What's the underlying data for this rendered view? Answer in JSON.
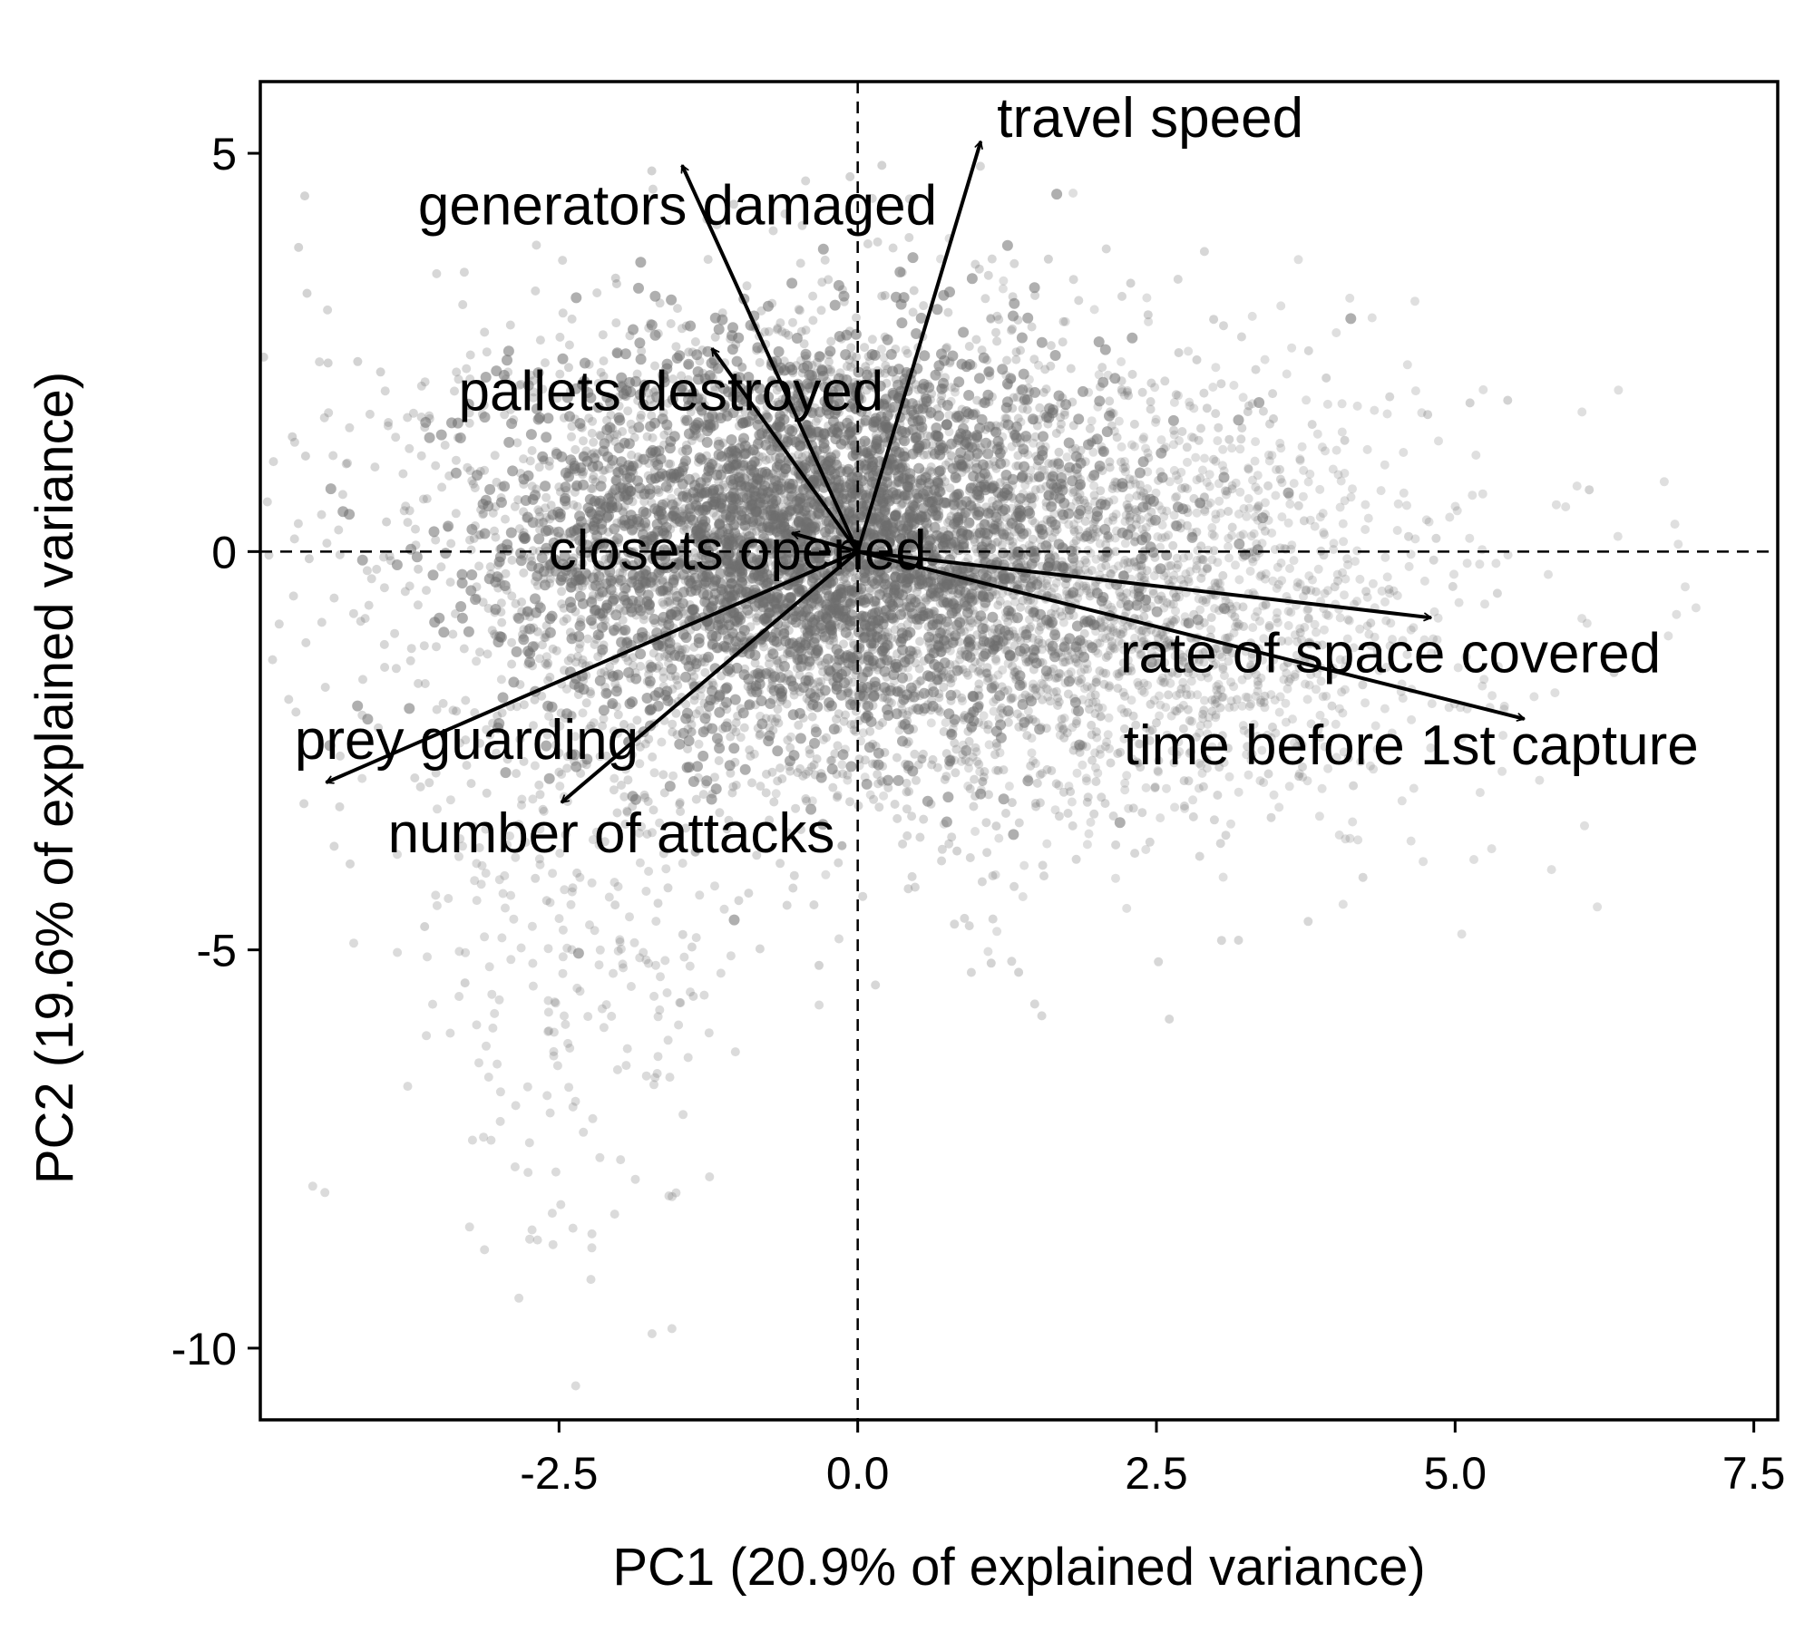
{
  "chart_data": {
    "type": "scatter",
    "subtype": "pca-biplot",
    "title": "",
    "xlabel": "PC1 (20.9% of explained variance)",
    "ylabel": "PC2 (19.6% of explained variance)",
    "xlim": [
      -5.0,
      7.7
    ],
    "ylim": [
      -10.9,
      5.9
    ],
    "xticks": [
      -2.5,
      0.0,
      2.5,
      5.0,
      7.5
    ],
    "xtick_labels": [
      "-2.5",
      "0.0",
      "2.5",
      "5.0",
      "7.5"
    ],
    "yticks": [
      -10,
      -5,
      0,
      5
    ],
    "ytick_labels": [
      "-10",
      "-5",
      "0",
      "5"
    ],
    "grid": false,
    "reference_lines": {
      "x": 0,
      "y": 0,
      "style": "dashed"
    },
    "point_color": "#6e6e6e",
    "arrow_color": "#000000",
    "points_note_value": "dense cloud of semi-transparent grey observations centred near the origin",
    "loadings": [
      {
        "label": "travel speed",
        "x": 1.03,
        "y": 5.15
      },
      {
        "label": "generators damaged",
        "x": -1.47,
        "y": 4.85
      },
      {
        "label": "pallets destroyed",
        "x": -1.22,
        "y": 2.55
      },
      {
        "label": "closets opened",
        "x": -0.55,
        "y": 0.23
      },
      {
        "label": "rate of space covered",
        "x": 4.8,
        "y": -0.83
      },
      {
        "label": "time before 1st capture",
        "x": 5.58,
        "y": -2.1
      },
      {
        "label": "prey guarding",
        "x": -4.45,
        "y": -2.9
      },
      {
        "label": "number of attacks",
        "x": -2.48,
        "y": -3.15
      }
    ]
  }
}
